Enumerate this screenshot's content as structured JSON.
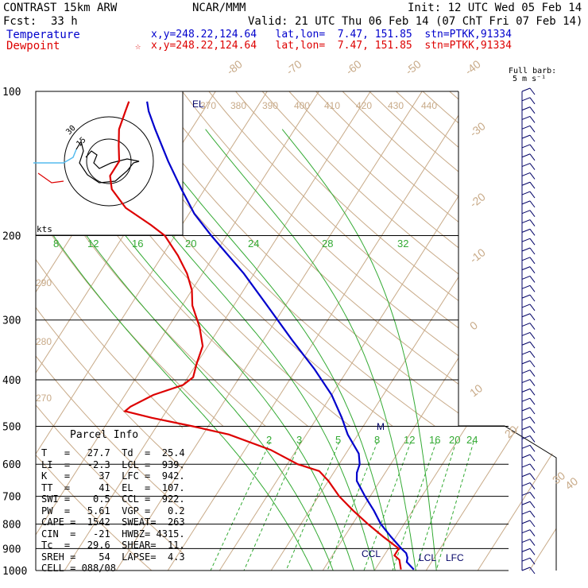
{
  "header": {
    "model": "CONTRAST 15km ARW",
    "org": "NCAR/MMM",
    "init": "Init: 12 UTC Wed 05 Feb 14",
    "fcst_label": "Fcst:",
    "fcst_value": "33 h",
    "valid": "Valid: 21 UTC Thu 06 Feb 14 (07 ChT Fri 07 Feb 14)",
    "temp_label": "Temperature",
    "temp_loc": "x,y=248.22,124.64   lat,lon=  7.47, 151.85  stn=PTKK,91334",
    "dew_label": "Dewpoint",
    "dew_marker": "☆",
    "dew_loc": "x,y=248.22,124.64   lat,lon=  7.47, 151.85  stn=PTKK,91334"
  },
  "barb_legend": {
    "line1": "Full barb:",
    "line2": "5 m s⁻¹"
  },
  "parcel_info": {
    "title": "Parcel Info",
    "rows": [
      "T   =   27.7  Td  =  25.4",
      "LI  =   -2.3  LCL =  939.",
      "K   =     37  LFC =  942.",
      "TT  =     41  EL  =  107.",
      "SWI =    0.5  CCL =  922.",
      "PW  =   5.61  VGP =   0.2",
      "CAPE =  1542  SWEAT=  263",
      "CIN  =   -21  HWBZ= 4315.",
      "Tc  =   29.6  SHEAR=  11.",
      "SREH =    54  LAPSE=  4.3",
      "CELL = 088/08"
    ]
  },
  "chart_data": {
    "type": "line",
    "subtype": "skew-T log-P sounding",
    "y_axis": {
      "label": "pressure",
      "unit": "hPa",
      "scale": "log",
      "reversed": true,
      "range": [
        1000,
        100
      ],
      "tick_labels": [
        "100",
        "200",
        "300",
        "400",
        "500",
        "600",
        "700",
        "800",
        "900",
        "1000"
      ]
    },
    "x_axis": {
      "label": "temperature",
      "unit": "C",
      "skewed": true,
      "range": [
        -85,
        35
      ]
    },
    "isotherm_labels": [
      "-80",
      "-70",
      "-60",
      "-50",
      "-40",
      "-30",
      "-20",
      "-10",
      "0",
      "10",
      "20",
      "30",
      "40"
    ],
    "theta_labels": [
      "370",
      "380",
      "390",
      "400",
      "410",
      "420",
      "430",
      "440",
      "290",
      "280",
      "270"
    ],
    "mixing_ratio_labels_upper": [
      "8",
      "12",
      "16",
      "20",
      "24",
      "28",
      "32"
    ],
    "mixing_ratio_labels_lower": [
      "2",
      "3",
      "5",
      "8",
      "12",
      "16",
      "20",
      "24"
    ],
    "series": [
      {
        "name": "Temperature",
        "color": "#0000cc",
        "p": [
          995,
          960,
          940,
          920,
          900,
          850,
          800,
          750,
          700,
          650,
          625,
          600,
          570,
          520,
          480,
          430,
          380,
          330,
          280,
          240,
          200,
          180,
          160,
          140,
          120,
          110,
          105
        ],
        "t": [
          27.5,
          25.2,
          24.8,
          24.0,
          22.5,
          19.0,
          15.5,
          12.5,
          9.0,
          5.5,
          4.5,
          4.0,
          2.5,
          -2.0,
          -5.2,
          -10.0,
          -16.5,
          -24.5,
          -33.5,
          -42.0,
          -53.0,
          -59.0,
          -64.5,
          -70.5,
          -77.0,
          -80.5,
          -82.0
        ]
      },
      {
        "name": "Dewpoint",
        "color": "#dd0000",
        "p": [
          995,
          950,
          930,
          900,
          850,
          800,
          750,
          700,
          650,
          620,
          600,
          560,
          520,
          500,
          480,
          465,
          455,
          430,
          410,
          395,
          370,
          340,
          310,
          280,
          260,
          240,
          220,
          200,
          190,
          175,
          160,
          150,
          140,
          130,
          120,
          110,
          105
        ],
        "t": [
          25.0,
          23.5,
          22.0,
          22.0,
          17.5,
          13.0,
          8.5,
          4.0,
          0.0,
          -3.0,
          -8.0,
          -15.0,
          -25.0,
          -33.0,
          -42.0,
          -48.0,
          -47.5,
          -44.5,
          -40.0,
          -39.0,
          -40.0,
          -41.0,
          -44.0,
          -48.0,
          -50.0,
          -53.0,
          -57.0,
          -62.0,
          -66.0,
          -73.0,
          -78.0,
          -80.0,
          -80.0,
          -82.0,
          -84.0,
          -85.0,
          -85.5
        ]
      }
    ],
    "annotations": [
      "EL",
      "M",
      "CCL",
      "LCL",
      "LFC"
    ],
    "hodograph": {
      "units_label": "kts",
      "ring_labels": [
        "15",
        "30"
      ]
    },
    "wind_barbs": {
      "count": 52,
      "p_range": [
        1000,
        100
      ]
    }
  }
}
